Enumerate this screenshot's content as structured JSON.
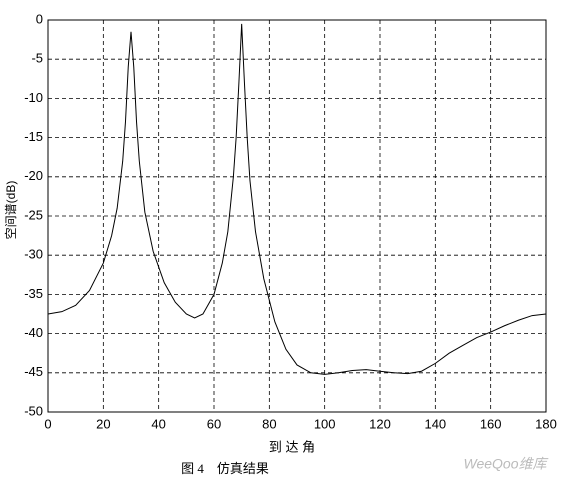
{
  "chart_data": {
    "type": "line",
    "xlabel": "到 达 角",
    "ylabel": "空间谱(dB)",
    "caption": "图 4　仿真结果",
    "watermark": "WeeQoo维库",
    "x": [
      0,
      5,
      10,
      15,
      20,
      23,
      25,
      27,
      28,
      29,
      30,
      31,
      32,
      33,
      35,
      38,
      42,
      46,
      50,
      53,
      56,
      60,
      63,
      65,
      67,
      68,
      69,
      70,
      71,
      72,
      73,
      75,
      78,
      82,
      86,
      90,
      95,
      100,
      105,
      110,
      115,
      120,
      125,
      130,
      135,
      140,
      145,
      150,
      155,
      160,
      165,
      170,
      175,
      180
    ],
    "series": [
      {
        "color": "#000000",
        "values": [
          -37.5,
          -37.2,
          -36.4,
          -34.5,
          -31,
          -27.5,
          -24,
          -18,
          -13,
          -6,
          -1.5,
          -6,
          -13,
          -18,
          -24.5,
          -29.5,
          -33.5,
          -36,
          -37.5,
          -38,
          -37.5,
          -35,
          -31,
          -27,
          -20,
          -15,
          -8,
          -0.5,
          -8,
          -15,
          -20.5,
          -27,
          -33,
          -38.5,
          -42,
          -44,
          -45,
          -45.2,
          -45,
          -44.7,
          -44.6,
          -44.8,
          -45,
          -45.1,
          -44.8,
          -43.8,
          -42.5,
          -41.5,
          -40.5,
          -39.8,
          -39,
          -38.3,
          -37.7,
          -37.5
        ]
      }
    ],
    "xlim": [
      0,
      180
    ],
    "xticks": [
      0,
      20,
      40,
      60,
      80,
      100,
      120,
      140,
      160,
      180
    ],
    "ylim": [
      -50,
      0
    ],
    "yticks": [
      0,
      -5,
      -10,
      -15,
      -20,
      -25,
      -30,
      -35,
      -40,
      -45,
      -50
    ],
    "grid": true
  }
}
